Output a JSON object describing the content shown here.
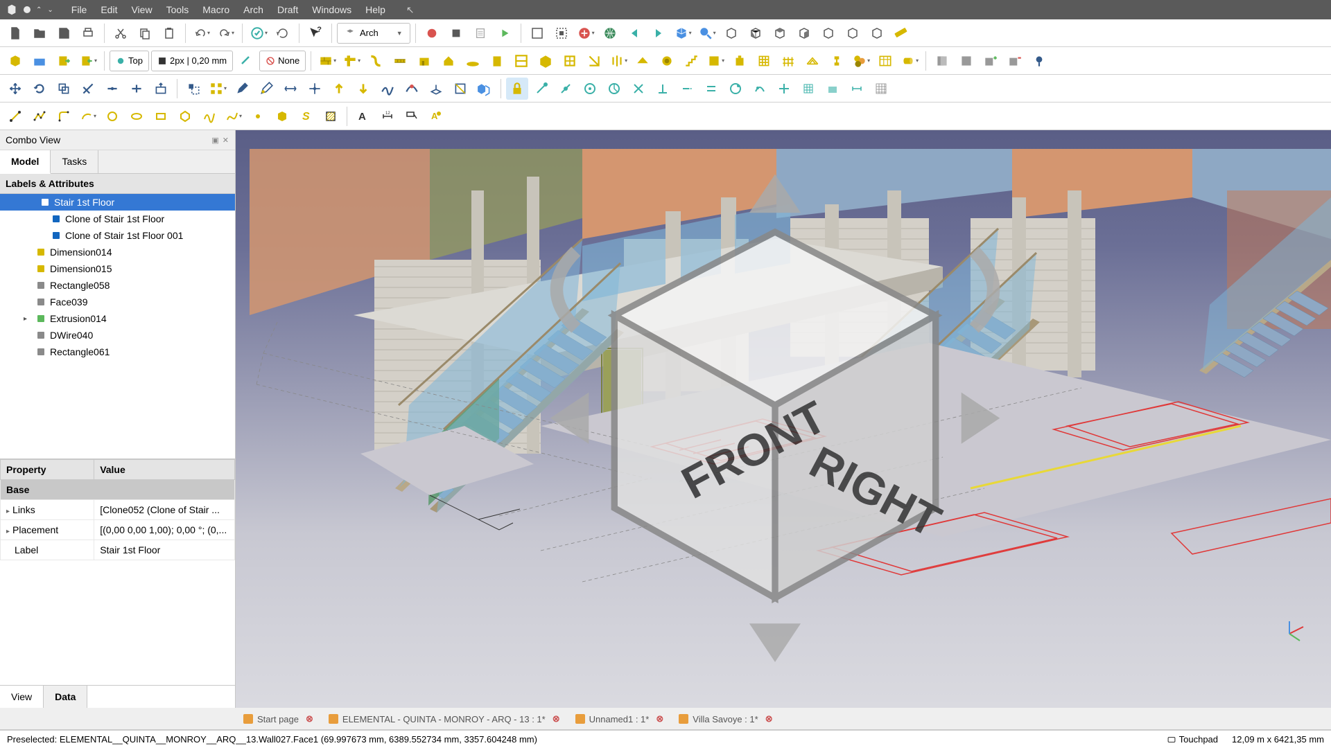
{
  "menubar": {
    "items": [
      "File",
      "Edit",
      "View",
      "Tools",
      "Macro",
      "Arch",
      "Draft",
      "Windows",
      "Help"
    ]
  },
  "toolbar1": {
    "workbench": "Arch",
    "view_label": "Top",
    "line_label": "2px | 0,20 mm",
    "none_label": "None"
  },
  "combo": {
    "title": "Combo View",
    "tab_model": "Model",
    "tab_tasks": "Tasks",
    "header": "Labels & Attributes",
    "tree": [
      {
        "label": "Stair 1st Floor",
        "indent": 40,
        "selected": true,
        "color": "#fff"
      },
      {
        "label": "Clone of Stair 1st Floor",
        "indent": 56,
        "color": "#1266bf"
      },
      {
        "label": "Clone of Stair 1st Floor 001",
        "indent": 56,
        "color": "#1266bf"
      },
      {
        "label": "Dimension014",
        "indent": 34,
        "color": "#d6b800"
      },
      {
        "label": "Dimension015",
        "indent": 34,
        "color": "#d6b800"
      },
      {
        "label": "Rectangle058",
        "indent": 34,
        "color": "#8a8a8a"
      },
      {
        "label": "Face039",
        "indent": 34,
        "color": "#8a8a8a"
      },
      {
        "label": "Extrusion014",
        "indent": 34,
        "expander": "▸",
        "color": "#5cb85c"
      },
      {
        "label": "DWire040",
        "indent": 34,
        "color": "#8a8a8a"
      },
      {
        "label": "Rectangle061",
        "indent": 34,
        "color": "#8a8a8a"
      }
    ],
    "prop_header_property": "Property",
    "prop_header_value": "Value",
    "prop_group": "Base",
    "props": [
      {
        "name": "Links",
        "value": "[Clone052 (Clone of Stair ...",
        "expander": "▸"
      },
      {
        "name": "Placement",
        "value": "[(0,00 0,00 1,00); 0,00 °; (0,...",
        "expander": "▸"
      },
      {
        "name": "Label",
        "value": "Stair 1st Floor"
      }
    ],
    "btab_view": "View",
    "btab_data": "Data"
  },
  "doctabs": [
    {
      "label": "Start page"
    },
    {
      "label": "ELEMENTAL - QUINTA - MONROY - ARQ - 13 : 1*"
    },
    {
      "label": "Unnamed1 : 1*"
    },
    {
      "label": "Villa Savoye : 1*"
    }
  ],
  "statusbar": {
    "left": "Preselected: ELEMENTAL__QUINTA__MONROY__ARQ__13.Wall027.Face1 (69.997673 mm, 6389.552734 mm, 3357.604248 mm)",
    "mode": "Touchpad",
    "coords": "12,09 m x 6421,35 mm"
  },
  "navcube": {
    "front": "FRONT",
    "right": "RIGHT"
  },
  "colors": {
    "menubar_bg": "#5a5a5a",
    "toolbar_bg": "#ffffff",
    "selection": "#3478d4",
    "icon_yellow": "#d6b800",
    "icon_gray": "#595959",
    "icon_blue": "#4a90e2",
    "icon_green": "#5cb85c",
    "icon_red": "#d9534f",
    "sky_top": "#5a5e86",
    "sky_bottom": "#dadae0",
    "wall_brick": "#d4d0c8",
    "wall_orange": "#d49670",
    "wall_blue": "#8ea8c4",
    "wall_olive": "#9aa05a",
    "glass": "#7eb5d8",
    "glass_green": "#5a9a6c",
    "floor": "#cac8d0",
    "red_line": "#e03838"
  }
}
